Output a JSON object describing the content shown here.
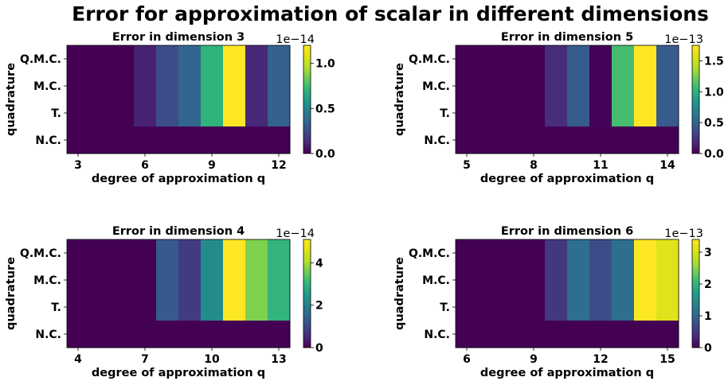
{
  "suptitle": "Error for approximation of scalar in different dimensions",
  "colormap": "viridis",
  "chart_data": [
    {
      "type": "heatmap",
      "title": "Error in dimension 3",
      "xlabel": "degree of approximation q",
      "ylabel": "quadrature",
      "rows": [
        "Q.M.C.",
        "M.C.",
        "T.",
        "N.C."
      ],
      "x": [
        3,
        4,
        5,
        6,
        7,
        8,
        9,
        10,
        11,
        12
      ],
      "xticks": [
        "3",
        "6",
        "9",
        "12"
      ],
      "values": [
        [
          0,
          0,
          0,
          0.1,
          0.25,
          0.35,
          0.7,
          1.2,
          0.12,
          0.33
        ],
        [
          0,
          0,
          0,
          0.1,
          0.25,
          0.35,
          0.7,
          1.2,
          0.12,
          0.33
        ],
        [
          0,
          0,
          0,
          0.1,
          0.25,
          0.35,
          0.7,
          1.2,
          0.12,
          0.33
        ],
        [
          0,
          0,
          0,
          0,
          0,
          0,
          0,
          0,
          0,
          0
        ]
      ],
      "colorbar": {
        "min": 0,
        "max": 1.2,
        "ticks": [
          "0.0",
          "0.5",
          "1.0"
        ],
        "tick_values": [
          0,
          0.5,
          1.0
        ],
        "offset": "1e−14"
      }
    },
    {
      "type": "heatmap",
      "title": "Error in dimension 5",
      "xlabel": "degree of approximation q",
      "ylabel": "quadrature",
      "rows": [
        "Q.M.C.",
        "M.C.",
        "T.",
        "N.C."
      ],
      "x": [
        5,
        6,
        7,
        8,
        9,
        10,
        11,
        12,
        13,
        14
      ],
      "xticks": [
        "5",
        "8",
        "11",
        "14"
      ],
      "values": [
        [
          0,
          0,
          0,
          0,
          0.2,
          0.45,
          0.02,
          1.1,
          1.75,
          0.45
        ],
        [
          0,
          0,
          0,
          0,
          0.2,
          0.45,
          0.02,
          1.1,
          1.75,
          0.45
        ],
        [
          0,
          0,
          0,
          0,
          0.2,
          0.45,
          0.02,
          1.1,
          1.75,
          0.45
        ],
        [
          0,
          0,
          0,
          0,
          0,
          0,
          0,
          0,
          0,
          0
        ]
      ],
      "colorbar": {
        "min": 0,
        "max": 1.75,
        "ticks": [
          "0.0",
          "0.5",
          "1.0",
          "1.5"
        ],
        "tick_values": [
          0,
          0.5,
          1.0,
          1.5
        ],
        "offset": "1e−13"
      }
    },
    {
      "type": "heatmap",
      "title": "Error in dimension 4",
      "xlabel": "degree of approximation q",
      "ylabel": "quadrature",
      "rows": [
        "Q.M.C.",
        "M.C.",
        "T.",
        "N.C."
      ],
      "x": [
        4,
        5,
        6,
        7,
        8,
        9,
        10,
        11,
        12,
        13
      ],
      "xticks": [
        "4",
        "7",
        "10",
        "13"
      ],
      "values": [
        [
          0,
          0,
          0,
          0,
          1.3,
          0.8,
          2.2,
          5.1,
          3.7,
          3.0
        ],
        [
          0,
          0,
          0,
          0,
          1.3,
          0.8,
          2.2,
          5.1,
          3.7,
          3.0
        ],
        [
          0,
          0,
          0,
          0,
          1.3,
          0.8,
          2.2,
          5.1,
          3.7,
          3.0
        ],
        [
          0,
          0,
          0,
          0,
          0,
          0,
          0,
          0,
          0,
          0
        ]
      ],
      "colorbar": {
        "min": 0,
        "max": 5.1,
        "ticks": [
          "0",
          "2",
          "4"
        ],
        "tick_values": [
          0,
          2,
          4
        ],
        "offset": "1e−14"
      }
    },
    {
      "type": "heatmap",
      "title": "Error in dimension 6",
      "xlabel": "degree of approximation q",
      "ylabel": "quadrature",
      "rows": [
        "Q.M.C.",
        "M.C.",
        "T.",
        "N.C."
      ],
      "x": [
        6,
        7,
        8,
        9,
        10,
        11,
        12,
        13,
        14,
        15
      ],
      "xticks": [
        "6",
        "9",
        "12",
        "15"
      ],
      "values": [
        [
          0,
          0,
          0,
          0,
          0.5,
          1.1,
          0.7,
          1.1,
          3.4,
          3.1
        ],
        [
          0,
          0,
          0,
          0,
          0.5,
          1.1,
          0.7,
          1.1,
          3.4,
          3.1
        ],
        [
          0,
          0,
          0,
          0,
          0.5,
          1.1,
          0.7,
          1.1,
          3.4,
          3.1
        ],
        [
          0,
          0,
          0,
          0,
          0,
          0,
          0,
          0,
          0,
          0
        ]
      ],
      "colorbar": {
        "min": 0,
        "max": 3.4,
        "ticks": [
          "0",
          "1",
          "2",
          "3"
        ],
        "tick_values": [
          0,
          1,
          2,
          3
        ],
        "offset": "1e−13"
      }
    }
  ]
}
